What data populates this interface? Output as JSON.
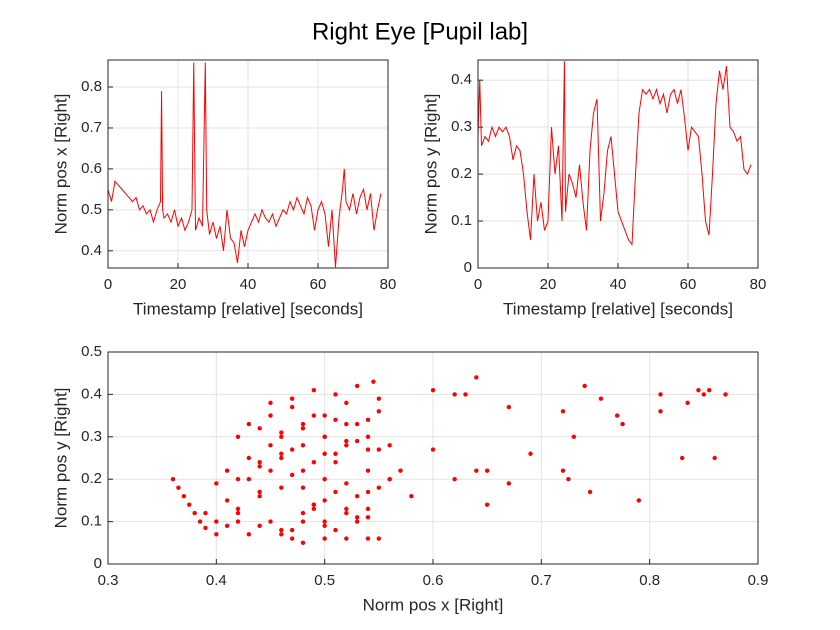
{
  "title": "Right Eye [Pupil lab]",
  "chart_data": [
    {
      "type": "line",
      "xlabel": "Timestamp [relative] [seconds]",
      "ylabel": "Norm pos x [Right]",
      "color": "#ff0000",
      "grid": true,
      "xlim": [
        0,
        80
      ],
      "ylim": [
        0.358,
        0.866
      ],
      "xticks": [
        0,
        20,
        40,
        60,
        80
      ],
      "yticks": [
        0.4,
        0.5,
        0.6,
        0.7,
        0.8
      ],
      "x": [
        0,
        1,
        2,
        3,
        4,
        5,
        6,
        7,
        8,
        9,
        10,
        11,
        12,
        13,
        14,
        15,
        15.3,
        15.6,
        16,
        17,
        18,
        19,
        20,
        21,
        22,
        23,
        24,
        24.5,
        25,
        26,
        27,
        27.8,
        28.2,
        29,
        30,
        31,
        32,
        33,
        34,
        35,
        36,
        37,
        38,
        39,
        40,
        41,
        42,
        43,
        44,
        45,
        46,
        47,
        48,
        49,
        50,
        51,
        52,
        53,
        54,
        55,
        56,
        57,
        58,
        59,
        60,
        61,
        62,
        63,
        64,
        65,
        66,
        67,
        67.5,
        68,
        69,
        70,
        71,
        72,
        73,
        74,
        75,
        76,
        77,
        78
      ],
      "values": [
        0.55,
        0.52,
        0.57,
        0.56,
        0.55,
        0.54,
        0.53,
        0.52,
        0.53,
        0.5,
        0.51,
        0.49,
        0.5,
        0.47,
        0.5,
        0.52,
        0.79,
        0.5,
        0.48,
        0.49,
        0.47,
        0.5,
        0.46,
        0.48,
        0.45,
        0.47,
        0.5,
        0.86,
        0.45,
        0.48,
        0.46,
        0.86,
        0.5,
        0.44,
        0.47,
        0.43,
        0.46,
        0.4,
        0.5,
        0.43,
        0.42,
        0.37,
        0.45,
        0.41,
        0.45,
        0.47,
        0.49,
        0.47,
        0.5,
        0.48,
        0.47,
        0.49,
        0.46,
        0.48,
        0.5,
        0.49,
        0.52,
        0.5,
        0.53,
        0.51,
        0.49,
        0.53,
        0.51,
        0.45,
        0.5,
        0.52,
        0.49,
        0.41,
        0.5,
        0.36,
        0.48,
        0.55,
        0.6,
        0.52,
        0.5,
        0.54,
        0.49,
        0.53,
        0.55,
        0.5,
        0.54,
        0.45,
        0.5,
        0.54
      ]
    },
    {
      "type": "line",
      "xlabel": "Timestamp [relative] [seconds]",
      "ylabel": "Norm pos y [Right]",
      "color": "#ff0000",
      "grid": true,
      "xlim": [
        0,
        80
      ],
      "ylim": [
        0,
        0.443
      ],
      "xticks": [
        0,
        20,
        40,
        60,
        80
      ],
      "yticks": [
        0,
        0.1,
        0.2,
        0.3,
        0.4
      ],
      "x": [
        0,
        0.5,
        1,
        2,
        3,
        4,
        5,
        6,
        7,
        8,
        9,
        10,
        11,
        12,
        13,
        14,
        15,
        16,
        17,
        18,
        19,
        20,
        21,
        22,
        23,
        24,
        24.7,
        25,
        26,
        27,
        28,
        29,
        30,
        31,
        32,
        33,
        34,
        35,
        36,
        37,
        38,
        39,
        40,
        41,
        42,
        43,
        44,
        45,
        46,
        47,
        48,
        49,
        50,
        51,
        52,
        53,
        54,
        55,
        56,
        57,
        58,
        59,
        60,
        61,
        62,
        63,
        64,
        65,
        66,
        67,
        68,
        69,
        70,
        71,
        72,
        73,
        74,
        75,
        76,
        77,
        78
      ],
      "values": [
        0.28,
        0.4,
        0.26,
        0.28,
        0.27,
        0.3,
        0.28,
        0.3,
        0.29,
        0.3,
        0.28,
        0.23,
        0.26,
        0.25,
        0.2,
        0.12,
        0.06,
        0.2,
        0.1,
        0.14,
        0.08,
        0.1,
        0.3,
        0.2,
        0.26,
        0.1,
        0.44,
        0.12,
        0.2,
        0.18,
        0.15,
        0.22,
        0.14,
        0.08,
        0.25,
        0.33,
        0.36,
        0.1,
        0.16,
        0.25,
        0.28,
        0.2,
        0.12,
        0.1,
        0.08,
        0.06,
        0.05,
        0.2,
        0.33,
        0.38,
        0.37,
        0.38,
        0.36,
        0.38,
        0.35,
        0.37,
        0.33,
        0.37,
        0.38,
        0.35,
        0.38,
        0.32,
        0.25,
        0.3,
        0.29,
        0.28,
        0.2,
        0.1,
        0.07,
        0.2,
        0.35,
        0.42,
        0.38,
        0.43,
        0.3,
        0.29,
        0.27,
        0.28,
        0.21,
        0.2,
        0.22
      ]
    },
    {
      "type": "scatter",
      "xlabel": "Norm pos x [Right]",
      "ylabel": "Norm pos y [Right]",
      "color": "#ff0000",
      "grid": true,
      "xlim": [
        0.3,
        0.9
      ],
      "ylim": [
        0,
        0.5
      ],
      "xticks": [
        0.3,
        0.4,
        0.5,
        0.6,
        0.7,
        0.8,
        0.9
      ],
      "yticks": [
        0,
        0.1,
        0.2,
        0.3,
        0.4,
        0.5
      ],
      "x": [
        0.36,
        0.365,
        0.37,
        0.375,
        0.38,
        0.385,
        0.39,
        0.42,
        0.44,
        0.46,
        0.48,
        0.5,
        0.52,
        0.54,
        0.55,
        0.5,
        0.54,
        0.58,
        0.62,
        0.64,
        0.64,
        0.62,
        0.6,
        0.63,
        0.67,
        0.67,
        0.65,
        0.65,
        0.69,
        0.72,
        0.73,
        0.72,
        0.725,
        0.74,
        0.745,
        0.755,
        0.77,
        0.775,
        0.79,
        0.81,
        0.81,
        0.83,
        0.835,
        0.845,
        0.85,
        0.855,
        0.86,
        0.87,
        0.6,
        0.4,
        0.41,
        0.42,
        0.43,
        0.44,
        0.45,
        0.46,
        0.47,
        0.48,
        0.49,
        0.5,
        0.51,
        0.52,
        0.53,
        0.54,
        0.55,
        0.56,
        0.57,
        0.4,
        0.42,
        0.44,
        0.46,
        0.48,
        0.5,
        0.52,
        0.54,
        0.56,
        0.41,
        0.43,
        0.45,
        0.47,
        0.49,
        0.51,
        0.53,
        0.55,
        0.42,
        0.44,
        0.46,
        0.48,
        0.5,
        0.52,
        0.54,
        0.43,
        0.45,
        0.47,
        0.49,
        0.51,
        0.53,
        0.55,
        0.44,
        0.46,
        0.48,
        0.5,
        0.52,
        0.54,
        0.45,
        0.47,
        0.49,
        0.51,
        0.53,
        0.55,
        0.46,
        0.48,
        0.5,
        0.52,
        0.54,
        0.47,
        0.49,
        0.51,
        0.53,
        0.48,
        0.5,
        0.52,
        0.545,
        0.41,
        0.43,
        0.45,
        0.47,
        0.49,
        0.51,
        0.53,
        0.39,
        0.4,
        0.42,
        0.44,
        0.46,
        0.48,
        0.5,
        0.52,
        0.54,
        0.56
      ],
      "values": [
        0.2,
        0.18,
        0.16,
        0.14,
        0.12,
        0.1,
        0.085,
        0.1,
        0.09,
        0.07,
        0.05,
        0.06,
        0.06,
        0.06,
        0.06,
        0.1,
        0.13,
        0.16,
        0.2,
        0.22,
        0.44,
        0.4,
        0.41,
        0.4,
        0.37,
        0.19,
        0.22,
        0.14,
        0.26,
        0.36,
        0.3,
        0.22,
        0.2,
        0.42,
        0.17,
        0.39,
        0.35,
        0.33,
        0.15,
        0.4,
        0.36,
        0.25,
        0.38,
        0.41,
        0.4,
        0.41,
        0.25,
        0.4,
        0.27,
        0.19,
        0.15,
        0.12,
        0.2,
        0.17,
        0.22,
        0.25,
        0.21,
        0.18,
        0.14,
        0.2,
        0.24,
        0.19,
        0.16,
        0.22,
        0.18,
        0.2,
        0.22,
        0.1,
        0.13,
        0.16,
        0.18,
        0.12,
        0.15,
        0.13,
        0.17,
        0.2,
        0.22,
        0.25,
        0.28,
        0.27,
        0.24,
        0.26,
        0.29,
        0.27,
        0.3,
        0.32,
        0.31,
        0.33,
        0.3,
        0.28,
        0.3,
        0.33,
        0.35,
        0.37,
        0.35,
        0.34,
        0.33,
        0.36,
        0.24,
        0.26,
        0.28,
        0.3,
        0.29,
        0.27,
        0.38,
        0.39,
        0.41,
        0.4,
        0.42,
        0.39,
        0.08,
        0.1,
        0.09,
        0.12,
        0.11,
        0.06,
        0.14,
        0.08,
        0.1,
        0.22,
        0.26,
        0.38,
        0.43,
        0.09,
        0.07,
        0.1,
        0.08,
        0.13,
        0.17,
        0.11,
        0.12,
        0.07,
        0.2,
        0.23,
        0.3,
        0.32,
        0.35,
        0.33,
        0.34,
        0.28
      ]
    }
  ]
}
